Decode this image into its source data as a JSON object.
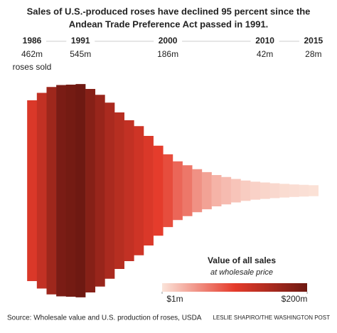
{
  "chart_data": {
    "type": "stream",
    "title_lines": [
      "Sales of U.S.-produced roses have declined 95 percent since the",
      "Andean Trade Preference Act passed in 1991."
    ],
    "x": [
      1986,
      1987,
      1988,
      1989,
      1990,
      1991,
      1992,
      1993,
      1994,
      1995,
      1996,
      1997,
      1998,
      1999,
      2000,
      2001,
      2002,
      2003,
      2004,
      2005,
      2006,
      2007,
      2008,
      2009,
      2010,
      2011,
      2012,
      2013,
      2014,
      2015
    ],
    "values": [
      462,
      500,
      530,
      540,
      542,
      545,
      520,
      490,
      450,
      400,
      360,
      330,
      280,
      230,
      186,
      150,
      130,
      110,
      95,
      80,
      70,
      60,
      52,
      46,
      42,
      38,
      35,
      32,
      30,
      28
    ],
    "value_labels": [
      "462m",
      null,
      null,
      null,
      null,
      "545m",
      null,
      null,
      null,
      null,
      null,
      null,
      null,
      null,
      "186m",
      null,
      null,
      null,
      null,
      null,
      null,
      null,
      null,
      null,
      "42m",
      null,
      null,
      null,
      null,
      "28m"
    ],
    "value_label_note": "roses sold",
    "xticks": [
      1986,
      1991,
      2000,
      2010,
      2015
    ],
    "sales_values": [
      110,
      130,
      160,
      190,
      195,
      200,
      180,
      165,
      150,
      140,
      130,
      120,
      110,
      100,
      90,
      75,
      65,
      50,
      40,
      30,
      25,
      20,
      15,
      12,
      10,
      8,
      6,
      5,
      4,
      3
    ],
    "legend_title": "Value of all sales",
    "legend_subtitle": "at wholesale price",
    "colorlim": [
      1,
      200
    ],
    "colorticks": [
      {
        "value": 1,
        "label": "$1m"
      },
      {
        "value": 200,
        "label": "$200m"
      }
    ],
    "colors": [
      "#fbe4da",
      "#e53b2b",
      "#6e1912"
    ],
    "source": "Source: Wholesale value and U.S. production of roses, USDA",
    "credit": "LESLIE SHAPIRO/THE WASHINGTON POST"
  }
}
